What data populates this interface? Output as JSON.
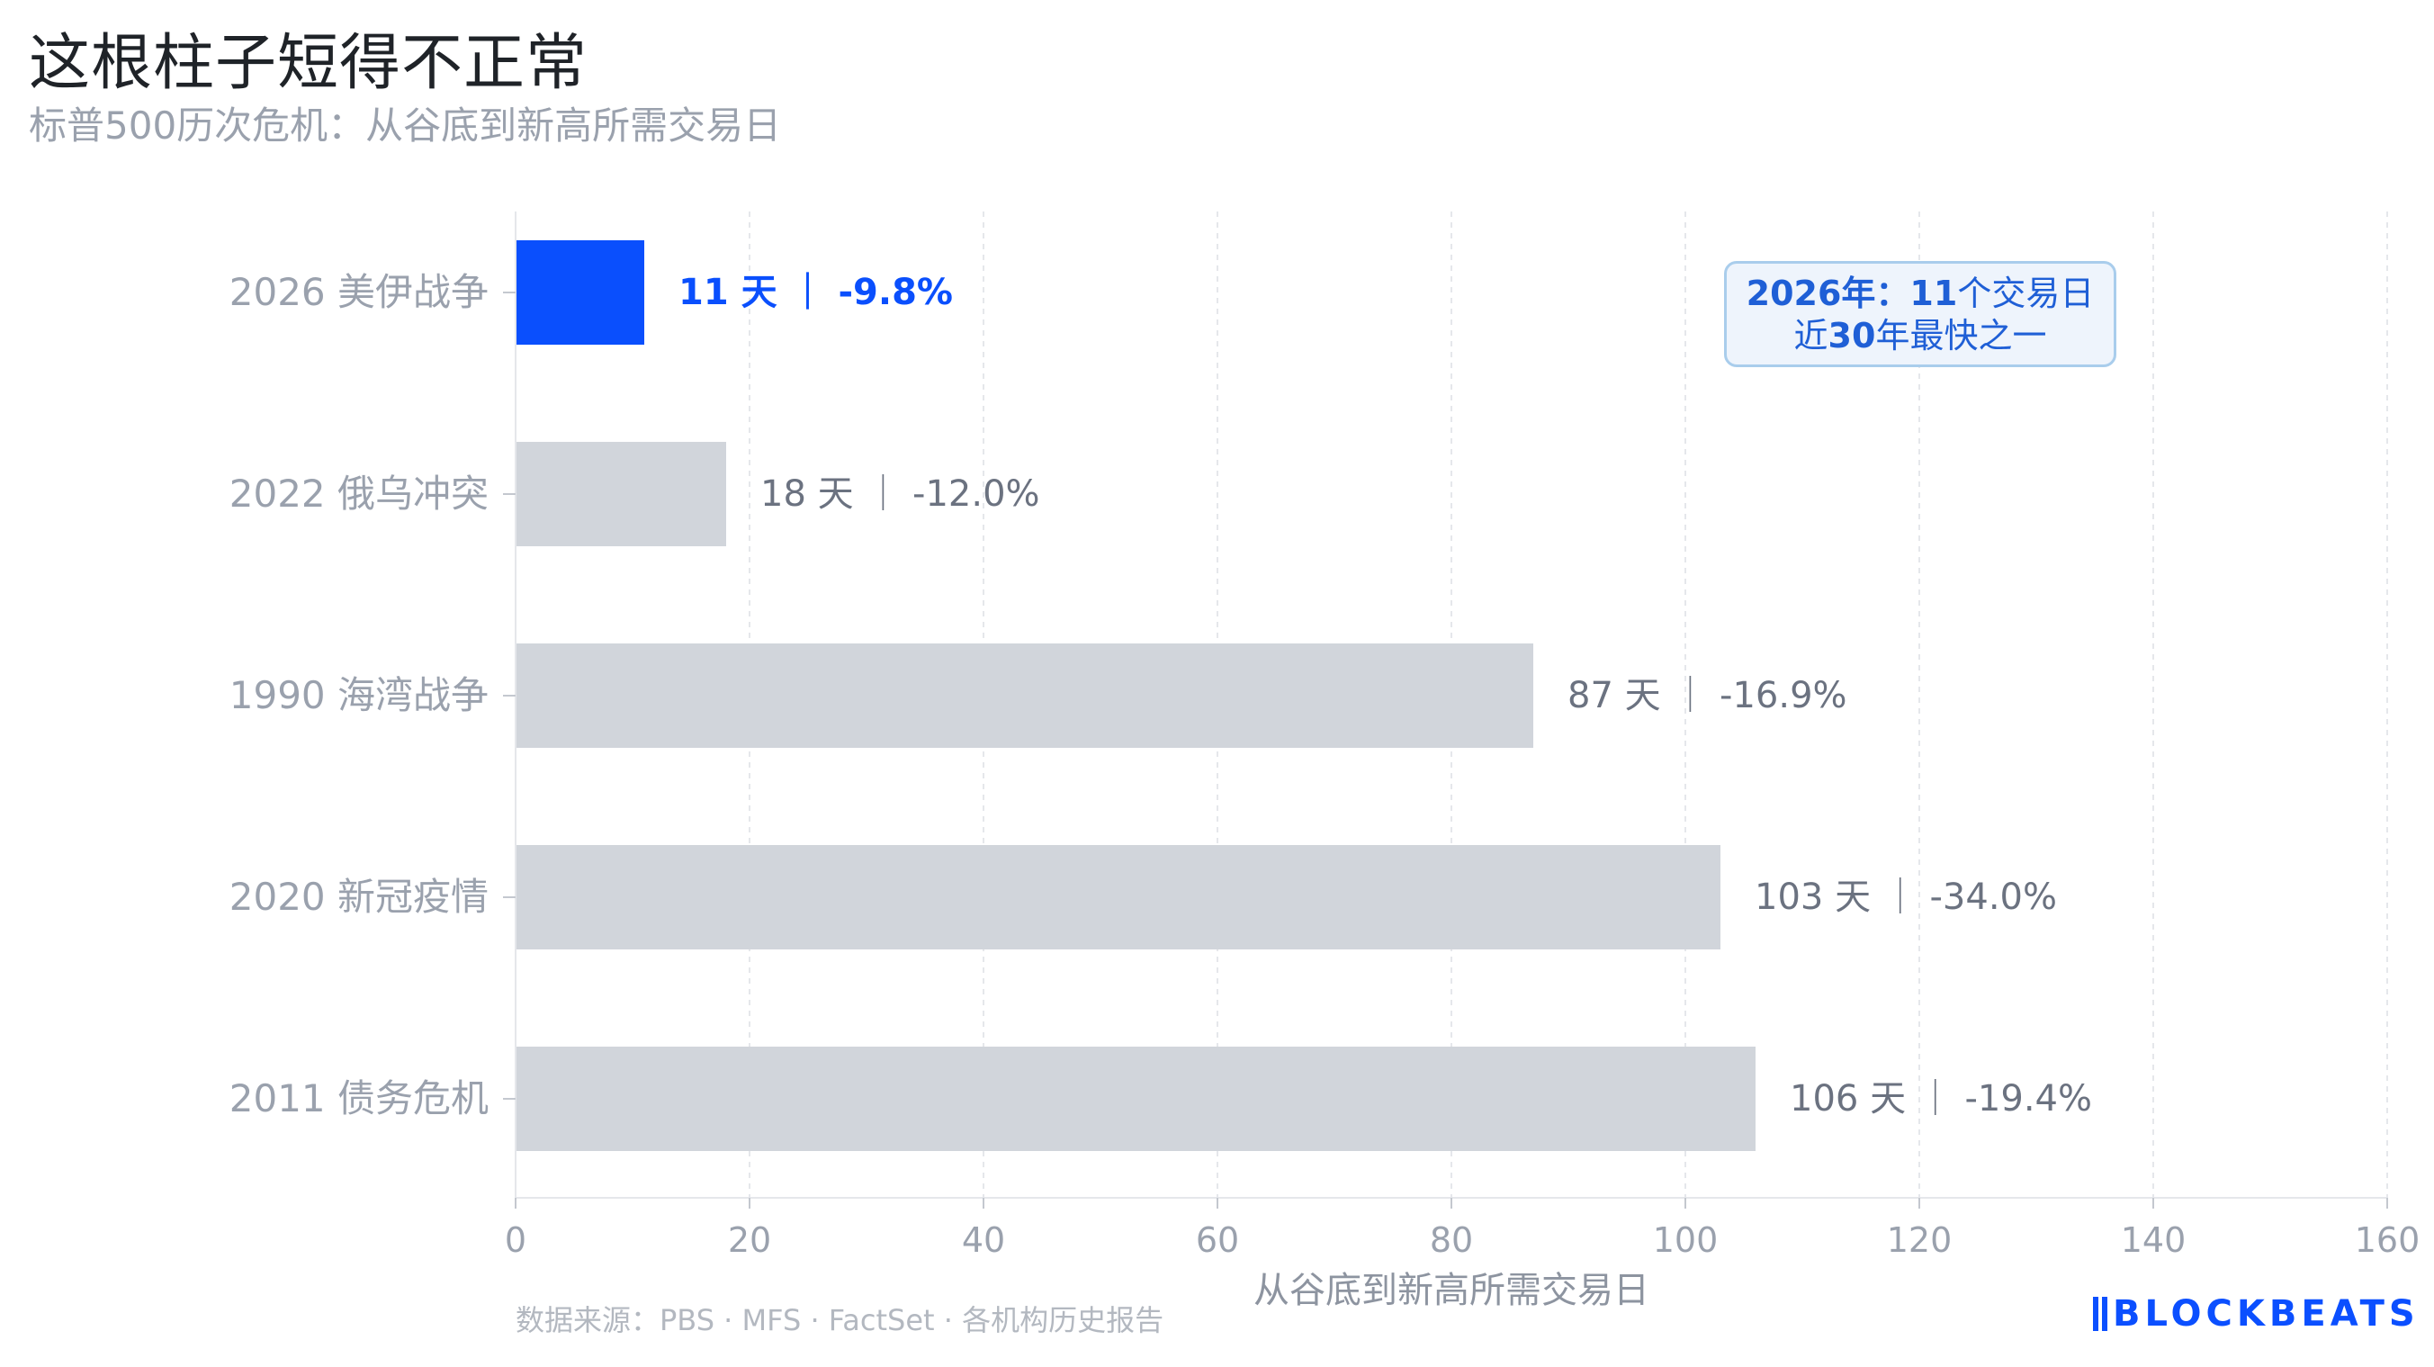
{
  "title": "这根柱子短得不正常",
  "subtitle": "标普500历次危机：从谷底到新高所需交易日",
  "callout": {
    "part1": "2026年：",
    "part2": "11",
    "part3": "个交易日",
    "part4": "近",
    "part5": "30",
    "part6": "年最快之一"
  },
  "source": "数据来源：PBS · MFS · FactSet · 各机构历史报告",
  "brand": "BLOCKBEATS",
  "colors": {
    "highlight": "#0a4ffd",
    "bar": "#d1d5db",
    "label_highlight": "#0a4ffd",
    "label": "#6b7280",
    "tick": "#9aa1ad",
    "grid": "#e5e7eb"
  },
  "chart_data": {
    "type": "bar",
    "orientation": "horizontal",
    "categories": [
      "2026 美伊战争",
      "2022 俄乌冲突",
      "1990 海湾战争",
      "2020 新冠疫情",
      "2011 债务危机"
    ],
    "values": [
      11,
      18,
      87,
      103,
      106
    ],
    "drawdowns": [
      "-9.8%",
      "-12.0%",
      "-16.9%",
      "-34.0%",
      "-19.4%"
    ],
    "data_labels": [
      "11 天 ｜ -9.8%",
      "18 天 ｜ -12.0%",
      "87 天 ｜ -16.9%",
      "103 天 ｜ -34.0%",
      "106 天 ｜ -19.4%"
    ],
    "highlight_index": 0,
    "xlabel": "从谷底到新高所需交易日",
    "xlim": [
      0,
      160
    ],
    "xticks": [
      0,
      20,
      40,
      60,
      80,
      100,
      120,
      140,
      160
    ],
    "grid": "vertical dashed"
  }
}
